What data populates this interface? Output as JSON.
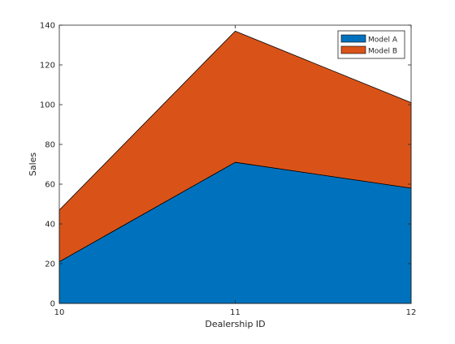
{
  "chart_data": {
    "type": "area",
    "stacked": true,
    "x": [
      10,
      11,
      12
    ],
    "series": [
      {
        "name": "Model A",
        "values": [
          21,
          71,
          58
        ],
        "color": "#0072BD"
      },
      {
        "name": "Model B",
        "values": [
          26,
          66,
          43
        ],
        "color": "#D95319"
      }
    ],
    "title": "",
    "xlabel": "Dealership ID",
    "ylabel": "Sales",
    "xlim": [
      10,
      12
    ],
    "ylim": [
      0,
      140
    ],
    "xticks": [
      10,
      11,
      12
    ],
    "yticks": [
      0,
      20,
      40,
      60,
      80,
      100,
      120,
      140
    ],
    "grid": false,
    "legend_position": "top-right"
  }
}
